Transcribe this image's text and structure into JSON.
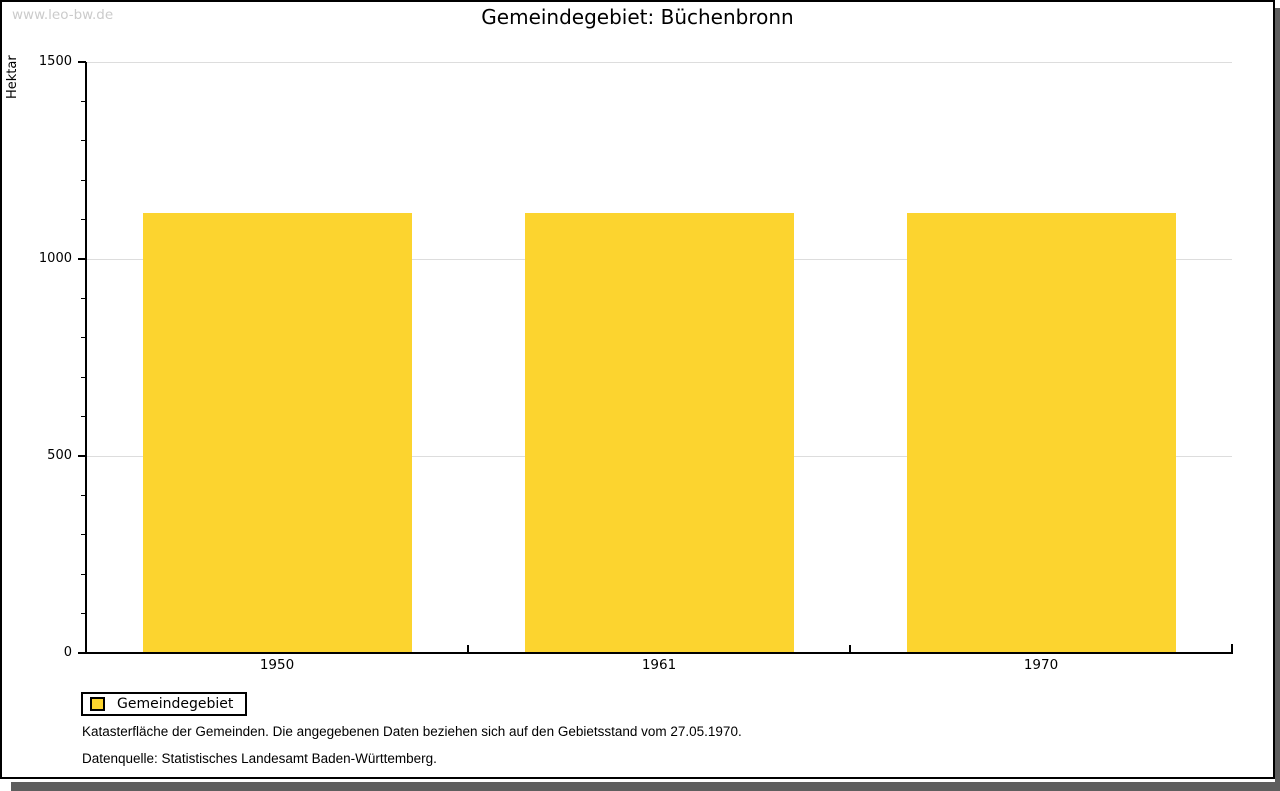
{
  "watermark": "www.leo-bw.de",
  "header": {
    "title": "Gemeindegebiet: Büchenbronn"
  },
  "chart_data": {
    "type": "bar",
    "title": "Gemeindegebiet: Büchenbronn",
    "categories": [
      "1950",
      "1961",
      "1970"
    ],
    "series": [
      {
        "name": "Gemeindegebiet",
        "values": [
          1117,
          1117,
          1117
        ]
      }
    ],
    "xlabel": "",
    "ylabel": "Hektar",
    "ylim": [
      0,
      1500
    ],
    "ytick_major": [
      0,
      500,
      1000,
      1500
    ],
    "ytick_minor_step": 100,
    "grid": true,
    "legend_position": "bottom-left",
    "bar_color": "#FCD42F"
  },
  "legend": {
    "label": "Gemeindegebiet"
  },
  "footer": {
    "line1": "Katasterfläche der Gemeinden. Die angegebenen Daten beziehen sich auf den Gebietsstand vom 27.05.1970.",
    "line2": "Datenquelle: Statistisches Landesamt Baden-Württemberg."
  },
  "colors": {
    "bar": "#FCD42F",
    "grid": "#DDDDDD",
    "axis": "#000000",
    "watermark": "#CBCBCB",
    "shadow": "#5E5E5E"
  }
}
